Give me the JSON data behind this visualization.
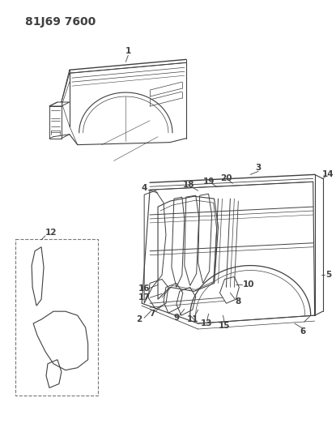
{
  "title": "81J69 7600",
  "bg": "#ffffff",
  "lc": "#404040",
  "figsize": [
    4.15,
    5.33
  ],
  "dpi": 100,
  "title_fs": 10,
  "label_fs": 7.5
}
